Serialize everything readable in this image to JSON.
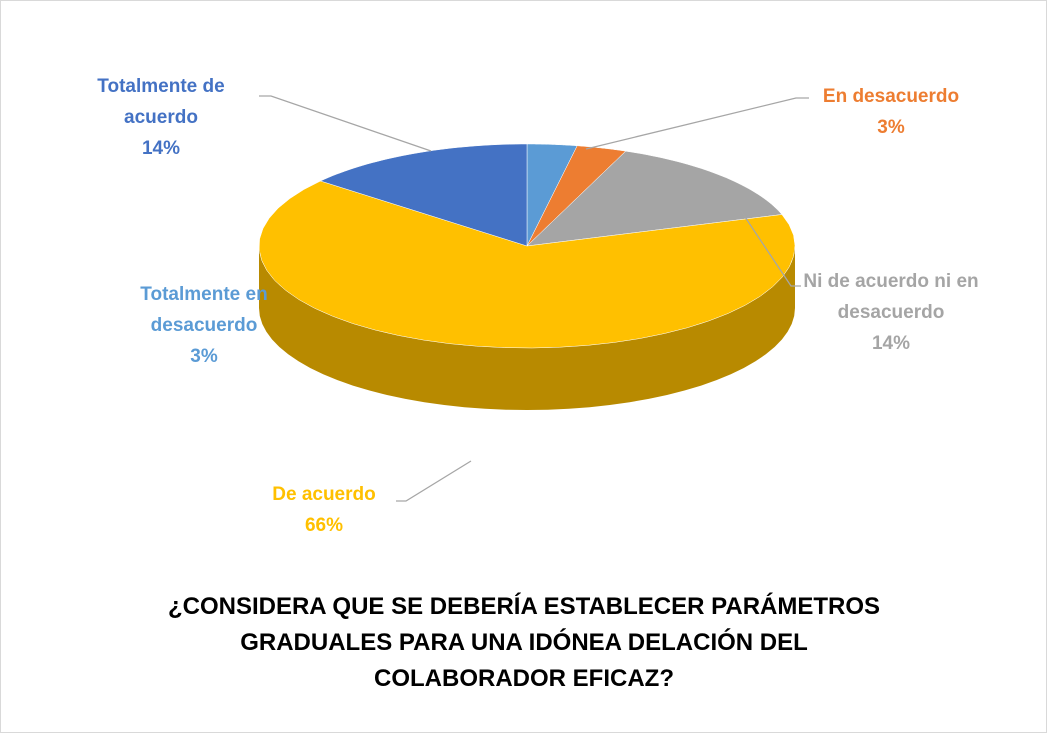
{
  "chart_data": {
    "type": "pie",
    "title": "¿CONSIDERA QUE SE DEBERÍA ESTABLECER PARÁMETROS GRADUALES PARA UNA IDÓNEA DELACIÓN DEL COLABORADOR EFICAZ?",
    "categories": [
      "Totalmente en desacuerdo",
      "En desacuerdo",
      "Ni de acuerdo ni en desacuerdo",
      "De acuerdo",
      "Totalmente de acuerdo"
    ],
    "values": [
      3,
      3,
      14,
      66,
      14
    ],
    "value_labels": [
      "3%",
      "3%",
      "14%",
      "66%",
      "14%"
    ],
    "colors": [
      "#5b9bd5",
      "#ed7d31",
      "#a5a5a5",
      "#ffc000",
      "#4472c4"
    ]
  }
}
